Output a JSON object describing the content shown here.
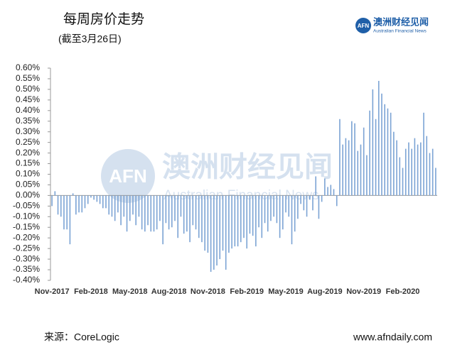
{
  "chart_data": {
    "type": "bar",
    "title": "每周房价走势",
    "subtitle": "(截至3月26日)",
    "logo": {
      "mark": "AFN",
      "name": "澳洲财经见闻",
      "english": "Australian Financial News"
    },
    "source": "来源：CoreLogic",
    "website": "www.afndaily.com",
    "color": "#7ba3d4",
    "categories": [
      "Nov-2017",
      null,
      null,
      null,
      null,
      null,
      null,
      null,
      null,
      null,
      null,
      null,
      null,
      "Feb-2018",
      null,
      null,
      null,
      null,
      null,
      null,
      null,
      null,
      null,
      null,
      null,
      null,
      "May-2018",
      null,
      null,
      null,
      null,
      null,
      null,
      null,
      null,
      null,
      null,
      null,
      null,
      "Aug-2018",
      null,
      null,
      null,
      null,
      null,
      null,
      null,
      null,
      null,
      null,
      null,
      null,
      "Nov-2018",
      null,
      null,
      null,
      null,
      null,
      null,
      null,
      null,
      null,
      null,
      null,
      null,
      "Feb-2019",
      null,
      null,
      null,
      null,
      null,
      null,
      null,
      null,
      null,
      null,
      null,
      null,
      "May-2019",
      null,
      null,
      null,
      null,
      null,
      null,
      null,
      null,
      null,
      null,
      null,
      null,
      "Aug-2019",
      null,
      null,
      null,
      null,
      null,
      null,
      null,
      null,
      null,
      null,
      null,
      null,
      "Nov-2019",
      null,
      null,
      null,
      null,
      null,
      null,
      null,
      null,
      null,
      null,
      null,
      null,
      "Feb-2020",
      null,
      null,
      null,
      null,
      null,
      null,
      null,
      null,
      null,
      null,
      null
    ],
    "values": [
      -0.05,
      0.02,
      -0.09,
      -0.1,
      -0.16,
      -0.16,
      -0.23,
      0.01,
      -0.09,
      -0.08,
      -0.08,
      -0.06,
      -0.04,
      -0.01,
      -0.02,
      -0.03,
      -0.04,
      -0.06,
      -0.06,
      -0.09,
      -0.1,
      -0.12,
      -0.08,
      -0.14,
      -0.1,
      -0.17,
      -0.12,
      -0.09,
      -0.14,
      -0.1,
      -0.16,
      -0.17,
      -0.14,
      -0.17,
      -0.17,
      -0.16,
      -0.12,
      -0.23,
      -0.13,
      -0.16,
      -0.15,
      -0.12,
      -0.2,
      -0.1,
      -0.18,
      -0.17,
      -0.22,
      -0.14,
      -0.16,
      -0.2,
      -0.22,
      -0.26,
      -0.27,
      -0.36,
      -0.35,
      -0.33,
      -0.3,
      -0.26,
      -0.35,
      -0.27,
      -0.25,
      -0.24,
      -0.24,
      -0.22,
      -0.2,
      -0.25,
      -0.18,
      -0.19,
      -0.24,
      -0.15,
      -0.2,
      -0.13,
      -0.17,
      -0.12,
      -0.1,
      -0.13,
      -0.2,
      -0.16,
      -0.08,
      -0.1,
      -0.23,
      -0.17,
      -0.11,
      -0.04,
      -0.07,
      -0.1,
      -0.02,
      -0.07,
      0.09,
      -0.11,
      -0.03,
      0.08,
      0.04,
      0.05,
      0.03,
      -0.05,
      0.36,
      0.24,
      0.27,
      0.26,
      0.35,
      0.34,
      0.21,
      0.24,
      0.32,
      0.19,
      0.4,
      0.5,
      0.36,
      0.54,
      0.48,
      0.43,
      0.41,
      0.39,
      0.3,
      0.26,
      0.18,
      0.13,
      0.22,
      0.25,
      0.22,
      0.27,
      0.24,
      0.25,
      0.39,
      0.28,
      0.2,
      0.22,
      0.13
    ],
    "ylim": [
      -0.4,
      0.6
    ],
    "yticks": [
      {
        "value": 0.6,
        "label": "0.60%"
      },
      {
        "value": 0.55,
        "label": "0.55%"
      },
      {
        "value": 0.5,
        "label": "0.50%"
      },
      {
        "value": 0.45,
        "label": "0.45%"
      },
      {
        "value": 0.4,
        "label": "0.40%"
      },
      {
        "value": 0.35,
        "label": "0.35%"
      },
      {
        "value": 0.3,
        "label": "0.30%"
      },
      {
        "value": 0.25,
        "label": "0.25%"
      },
      {
        "value": 0.2,
        "label": "0.20%"
      },
      {
        "value": 0.15,
        "label": "0.15%"
      },
      {
        "value": 0.1,
        "label": "0.10%"
      },
      {
        "value": 0.05,
        "label": "0.05%"
      },
      {
        "value": 0,
        "label": "0.00%"
      },
      {
        "value": -0.05,
        "label": "-0.05%"
      },
      {
        "value": -0.1,
        "label": "-0.10%"
      },
      {
        "value": -0.15,
        "label": "-0.15%"
      },
      {
        "value": -0.2,
        "label": "-0.20%"
      },
      {
        "value": -0.25,
        "label": "-0.25%"
      },
      {
        "value": -0.3,
        "label": "-0.30%"
      },
      {
        "value": -0.35,
        "label": "-0.35%"
      },
      {
        "value": -0.4,
        "label": "-0.40%"
      }
    ],
    "grid": false
  }
}
